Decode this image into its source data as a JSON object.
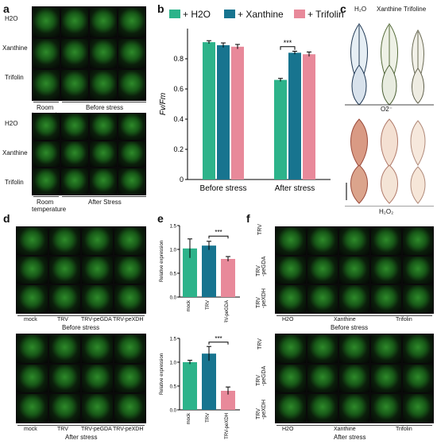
{
  "panels": {
    "a": {
      "letter": "a",
      "rows": [
        "H2O",
        "Xanthine",
        "Trifolin"
      ],
      "room_label_line1": "Room",
      "room_label_line2": "temperature",
      "before_label": "Before stress",
      "after_label": "After Stress"
    },
    "b": {
      "letter": "b",
      "legend": [
        "+ H2O",
        "+ Xanthine",
        "+ Trifolin"
      ],
      "colors": [
        "#2db38a",
        "#17748f",
        "#e8899a"
      ]
    },
    "c": {
      "letter": "c",
      "cols": [
        "H₂O",
        "Xanthine",
        "Trifoline"
      ],
      "o2_label": "O2⁻",
      "h2o2_label": "H₂O₂"
    },
    "d": {
      "letter": "d",
      "cols": [
        "mock",
        "TRV",
        "TRV-peGDA",
        "TRV-peXDH"
      ],
      "before_label": "Before stress",
      "after_label": "After stress"
    },
    "e": {
      "letter": "e"
    },
    "f": {
      "letter": "f",
      "rows": [
        "TRV",
        "TRV\n-peGDA",
        "TRV\n-peXDH"
      ],
      "cols": [
        "H2O",
        "Xanthine",
        "Trifolin"
      ],
      "before_label": "Before stress",
      "after_label": "After stress"
    }
  },
  "chart_data": [
    {
      "type": "bar",
      "ylabel": "Fv/Fm",
      "categories": [
        "Before stress",
        "After stress"
      ],
      "ylim": [
        0,
        1.0
      ],
      "yticks": [
        "0",
        "0.2",
        "0.4",
        "0.6",
        "0.8"
      ],
      "series": [
        {
          "name": "+ H2O",
          "values": [
            0.91,
            0.66
          ],
          "errors": [
            0.01,
            0.01
          ]
        },
        {
          "name": "+ Xanthine",
          "values": [
            0.89,
            0.84
          ],
          "errors": [
            0.015,
            0.01
          ]
        },
        {
          "name": "+ Trifolin",
          "values": [
            0.88,
            0.83
          ],
          "errors": [
            0.015,
            0.015
          ]
        }
      ],
      "annotation": "***"
    },
    {
      "type": "bar",
      "ylabel": "Relative expression",
      "categories": [
        "mock",
        "TRV",
        "TRV-peGDA"
      ],
      "ylim": [
        0,
        1.5
      ],
      "yticks": [
        "0.0",
        "0.5",
        "1.0",
        "1.5"
      ],
      "values": [
        1.02,
        1.08,
        0.8
      ],
      "errors": [
        0.2,
        0.09,
        0.05
      ],
      "annotation": "***"
    },
    {
      "type": "bar",
      "ylabel": "Relative expression",
      "categories": [
        "mock",
        "TRV",
        "TRV-peXDH"
      ],
      "ylim": [
        0,
        1.5
      ],
      "yticks": [
        "0.0",
        "0.5",
        "1.0",
        "1.5"
      ],
      "values": [
        1.0,
        1.18,
        0.4
      ],
      "errors": [
        0.04,
        0.15,
        0.08
      ],
      "annotation": "***"
    }
  ]
}
